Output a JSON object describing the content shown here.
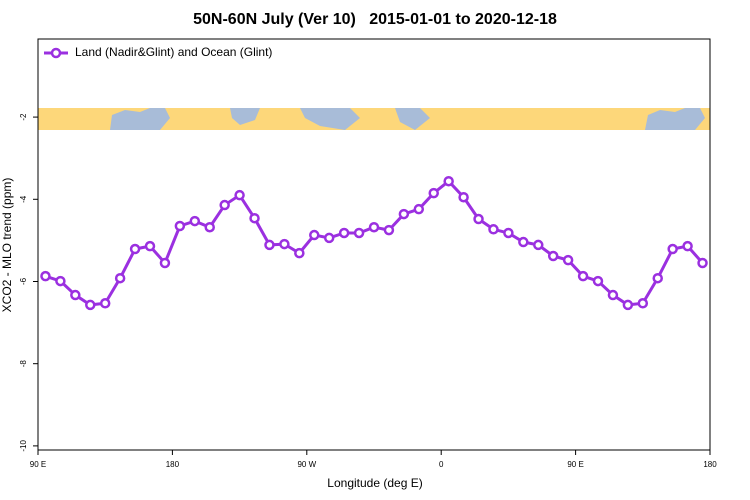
{
  "chart_data": {
    "type": "line",
    "title": "50N-60N July (Ver 10)   2015-01-01 to 2020-12-18",
    "xlabel": "Longitude (deg E)",
    "ylabel": "XCO2 - MLO trend (ppm)",
    "x": [
      95,
      105,
      115,
      125,
      135,
      145,
      155,
      165,
      175,
      185,
      195,
      205,
      215,
      225,
      235,
      245,
      255,
      265,
      275,
      285,
      295,
      305,
      315,
      325,
      335,
      345,
      355,
      365,
      375,
      385,
      395,
      405,
      415,
      425,
      435,
      445,
      455,
      465,
      475,
      485,
      495,
      505,
      515,
      525,
      535
    ],
    "series": [
      {
        "name": "Land (Nadir&Glint) and Ocean (Glint)",
        "color": "#9b30e0",
        "values": [
          -5.87,
          -5.99,
          -6.33,
          -6.57,
          -6.53,
          -5.92,
          -5.21,
          -5.14,
          -5.55,
          -4.65,
          -4.53,
          -4.68,
          -4.14,
          -3.9,
          -4.46,
          -5.11,
          -5.09,
          -5.31,
          -4.87,
          -4.94,
          -4.82,
          -4.82,
          -4.68,
          -4.75,
          -4.36,
          -4.24,
          -3.85,
          -3.56,
          -3.95,
          -4.48,
          -4.73,
          -4.82,
          -5.04,
          -5.11,
          -5.38,
          -5.48,
          -5.87,
          -5.99,
          -6.33,
          -6.57,
          -6.53,
          -5.92,
          -5.21,
          -5.14,
          -5.55
        ]
      }
    ],
    "xlim": [
      90,
      540
    ],
    "xticks": [
      {
        "value": 90,
        "label": "90 E"
      },
      {
        "value": 180,
        "label": "180"
      },
      {
        "value": 270,
        "label": "90 W"
      },
      {
        "value": 360,
        "label": "0"
      },
      {
        "value": 450,
        "label": "90 E"
      },
      {
        "value": 540,
        "label": "180"
      }
    ],
    "ylim": [
      -10.1,
      -0.1
    ],
    "yticks": [
      -10,
      -8,
      -6,
      -4,
      -2
    ],
    "legend": "top-left"
  }
}
